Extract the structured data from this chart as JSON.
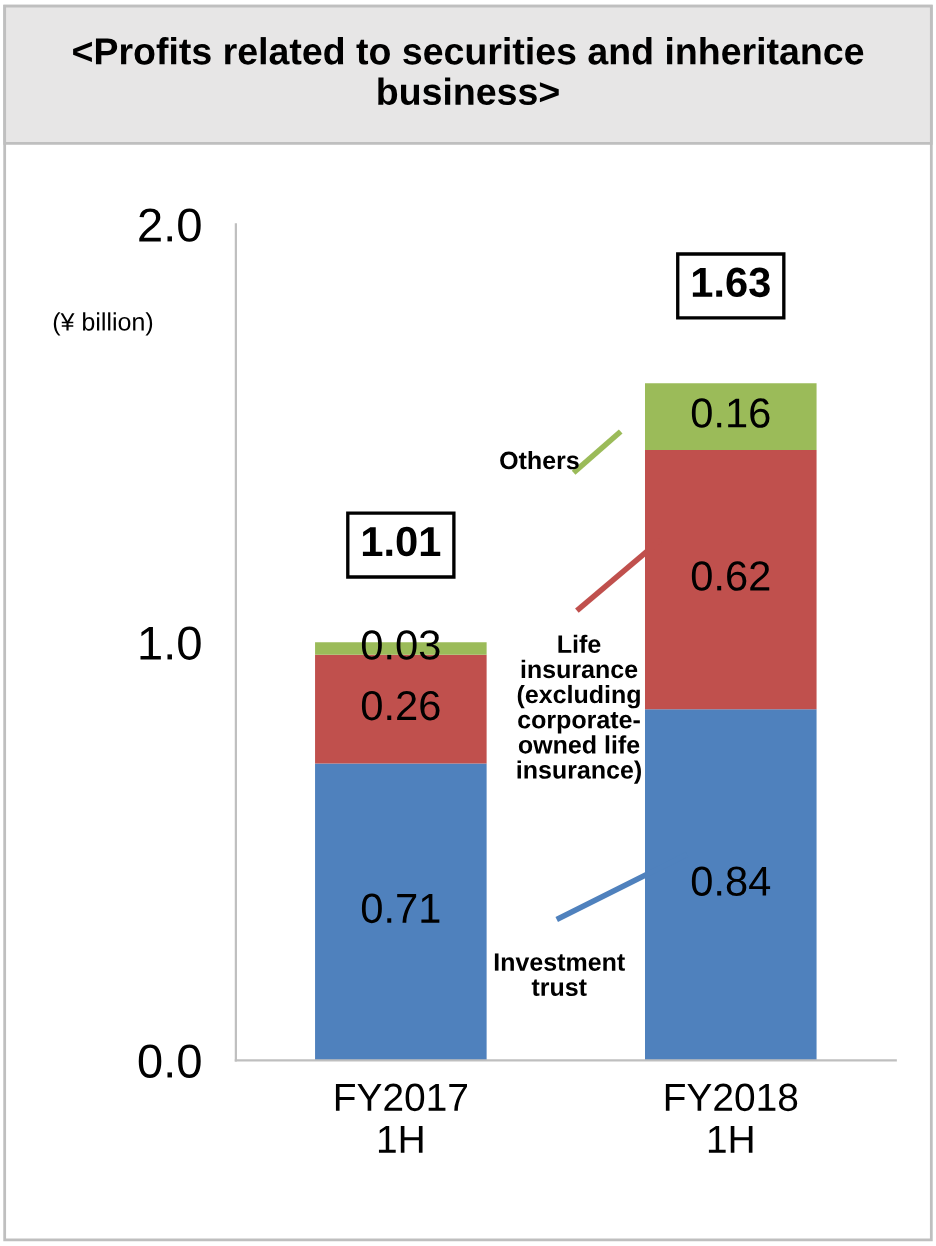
{
  "chart_data": {
    "type": "bar",
    "stacked": true,
    "title": "<Profits related to securities and inheritance business>",
    "categories": [
      "FY2017\n1H",
      "FY2018\n1H"
    ],
    "series": [
      {
        "name": "Investment trust",
        "color": "#4f81bd",
        "values": [
          0.71,
          0.84
        ]
      },
      {
        "name": "Life insurance (excluding corporate-owned life insurance)",
        "color": "#c0504d",
        "values": [
          0.26,
          0.62
        ]
      },
      {
        "name": "Others",
        "color": "#9bbb59",
        "values": [
          0.03,
          0.16
        ]
      }
    ],
    "totals": [
      "1.01",
      "1.63"
    ],
    "data_labels": true,
    "ylim": [
      0,
      2
    ],
    "yticks": [
      {
        "value": 0,
        "label": "0.0"
      },
      {
        "value": 1,
        "label": "1.0"
      },
      {
        "value": 2,
        "label": "2.0"
      }
    ],
    "annotations": [
      "(¥ billion)"
    ],
    "grid": false,
    "legend": "center"
  }
}
